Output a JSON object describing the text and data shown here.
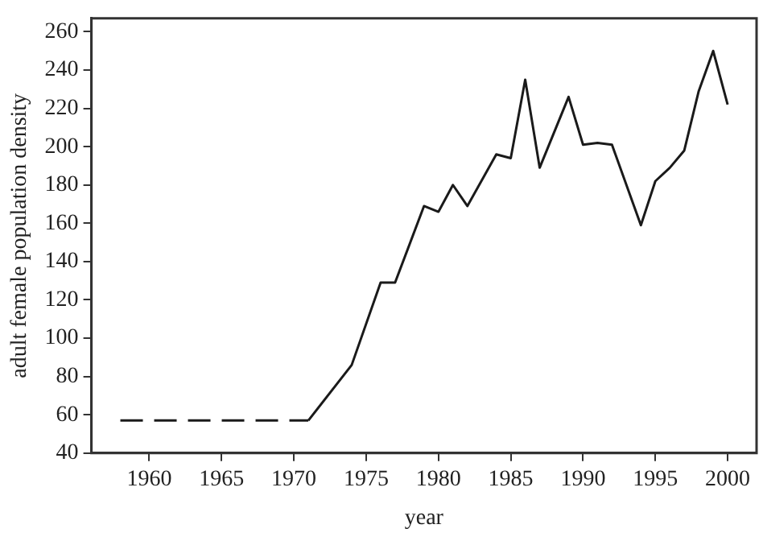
{
  "chart_data": {
    "type": "line",
    "xlabel": "year",
    "ylabel": "adult female population density",
    "xlim": [
      1956,
      2002
    ],
    "xticks": [
      1960,
      1965,
      1970,
      1975,
      1980,
      1985,
      1990,
      1995,
      2000
    ],
    "ylim": [
      40,
      267
    ],
    "yticks": [
      40,
      60,
      80,
      100,
      120,
      140,
      160,
      180,
      200,
      220,
      240,
      260
    ],
    "grid": false,
    "legend": false,
    "marker": "none",
    "series": [
      {
        "color": "#1a1a1a",
        "line_style": "dashed",
        "x": [
          1958,
          1971
        ],
        "values": [
          57,
          57
        ]
      },
      {
        "color": "#1a1a1a",
        "line_style": "solid",
        "x": [
          1971,
          1974,
          1976,
          1977,
          1979,
          1980,
          1981,
          1982,
          1984,
          1985,
          1986,
          1987,
          1989,
          1990,
          1991,
          1992,
          1994,
          1995,
          1996,
          1997,
          1998,
          1999,
          2000
        ],
        "values": [
          57,
          86,
          129,
          129,
          169,
          166,
          180,
          169,
          196,
          194,
          235,
          189,
          226,
          201,
          202,
          201,
          159,
          182,
          189,
          198,
          229,
          250,
          222
        ]
      }
    ]
  }
}
